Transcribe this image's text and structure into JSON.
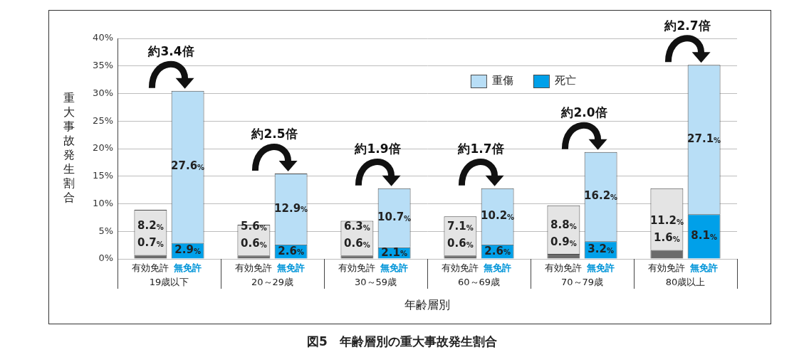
{
  "chart_data": {
    "type": "bar",
    "title": "図5　年齢層別の重大事故発生割合",
    "y_label": "重大事故発生割合",
    "x_label": "年齢層別",
    "categories": [
      "19歳以下",
      "20～29歳",
      "30～59歳",
      "60～69歳",
      "70～79歳",
      "80歳以上"
    ],
    "groups": [
      {
        "name": "有効免許",
        "series": [
          {
            "name": "死亡",
            "color": "#6b6b6b",
            "values": [
              0.7,
              0.6,
              0.6,
              0.6,
              0.9,
              1.6
            ],
            "value_labels": [
              "0.7%",
              "0.6%",
              "0.6%",
              "0.6%",
              "0.9%",
              "1.6%"
            ]
          },
          {
            "name": "重傷",
            "color": "#e4e4e4",
            "values": [
              8.2,
              5.6,
              6.3,
              7.1,
              8.8,
              11.2
            ],
            "value_labels": [
              "8.2%",
              "5.6%",
              "6.3%",
              "7.1%",
              "8.8%",
              "11.2%"
            ]
          }
        ]
      },
      {
        "name": "無免許",
        "series": [
          {
            "name": "死亡",
            "color": "#00a0e9",
            "values": [
              2.9,
              2.6,
              2.1,
              2.6,
              3.2,
              8.1
            ],
            "value_labels": [
              "2.9%",
              "2.6%",
              "2.1%",
              "2.6%",
              "3.2%",
              "8.1%"
            ]
          },
          {
            "name": "重傷",
            "color": "#b8def6",
            "values": [
              27.6,
              12.9,
              10.7,
              10.2,
              16.2,
              27.1
            ],
            "value_labels": [
              "27.6%",
              "12.9%",
              "10.7%",
              "10.2%",
              "16.2%",
              "27.1%"
            ]
          }
        ]
      }
    ],
    "annotations": [
      {
        "category": "19歳以下",
        "text": "約3.4倍"
      },
      {
        "category": "20～29歳",
        "text": "約2.5倍"
      },
      {
        "category": "30～59歳",
        "text": "約1.9倍"
      },
      {
        "category": "60～69歳",
        "text": "約1.7倍"
      },
      {
        "category": "70～79歳",
        "text": "約2.0倍"
      },
      {
        "category": "80歳以上",
        "text": "約2.7倍"
      }
    ],
    "ylim": [
      0,
      40
    ],
    "yticks": [
      {
        "value": 0,
        "label": "0%"
      },
      {
        "value": 5,
        "label": "5%"
      },
      {
        "value": 10,
        "label": "10%"
      },
      {
        "value": 15,
        "label": "15%"
      },
      {
        "value": 20,
        "label": "20%"
      },
      {
        "value": 25,
        "label": "25%"
      },
      {
        "value": 30,
        "label": "30%"
      },
      {
        "value": 35,
        "label": "35%"
      },
      {
        "value": 40,
        "label": "40%"
      }
    ],
    "grid": true,
    "stacked": true,
    "data_labels": true,
    "legend": "top"
  }
}
